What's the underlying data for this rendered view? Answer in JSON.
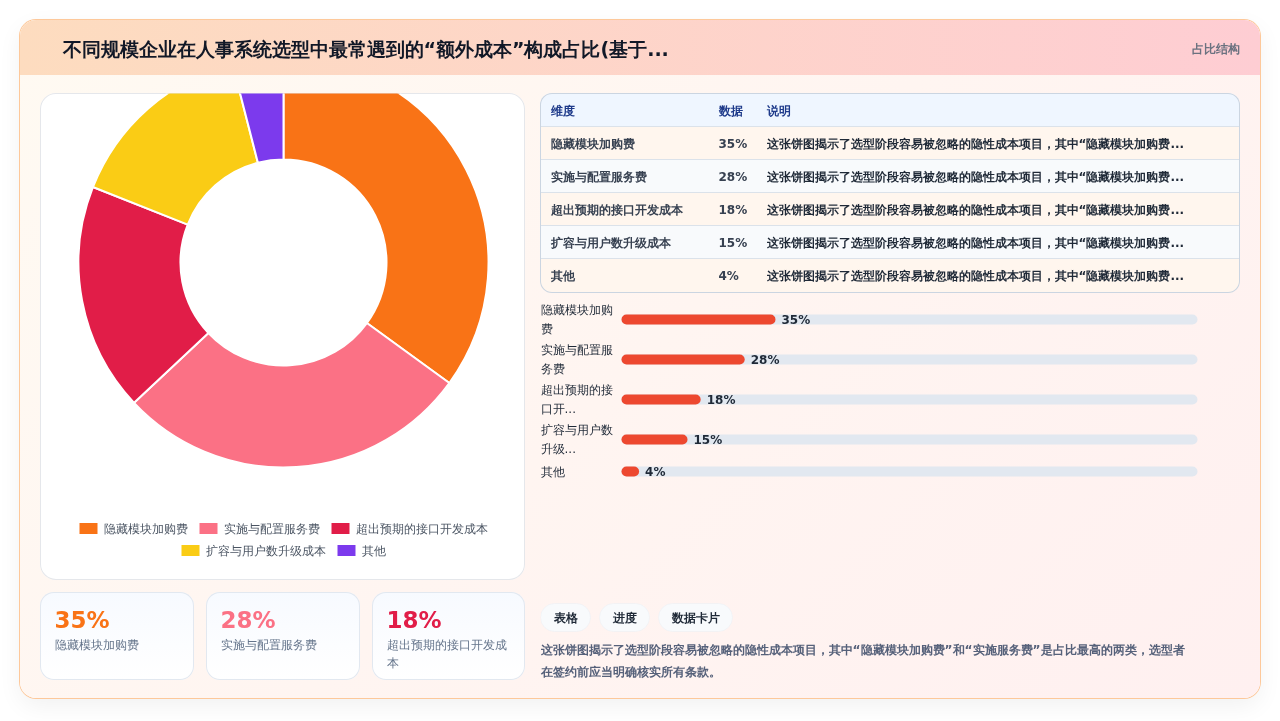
{
  "chart_data": [
    {
      "type": "other",
      "title": "不同规模企业在人事系统选型中最常遇到的“额外成本”构成占比(基于...",
      "subtitle": "占比结构"
    },
    {
      "type": "donut",
      "categories": [
        "隐藏模块加购费",
        "实施与配置服务费",
        "超出预期的接口开发成本",
        "扩容与用户数升级成本",
        "其他"
      ],
      "values": [
        35,
        28,
        18,
        15,
        4
      ],
      "colors": [
        "#f97316",
        "#fb7185",
        "#e11d48",
        "#facc15",
        "#7c3aed"
      ],
      "legend": "bottom"
    },
    {
      "type": "other",
      "categories": [
        "隐藏模块加购费",
        "实施与配置服务费",
        "超出预期的接口开发成本",
        "扩容与用户数升级成本",
        "其他"
      ],
      "values": [
        35,
        28,
        18,
        15,
        4
      ],
      "value_labels": [
        "35%",
        "28%",
        "18%",
        "15%",
        "4%"
      ],
      "annotations": [
        "维度",
        "数据",
        "说明",
        "这张饼图揭示了选型阶段容易被忽略的隐性成本项目，其中“隐藏模块加购费...",
        "这张饼图揭示了选型阶段容易被忽略的隐性成本项目，其中“隐藏模块加购费...",
        "这张饼图揭示了选型阶段容易被忽略的隐性成本项目，其中“隐藏模块加购费...",
        "这张饼图揭示了选型阶段容易被忽略的隐性成本项目，其中“隐藏模块加购费...",
        "这张饼图揭示了选型阶段容易被忽略的隐性成本项目，其中“隐藏模块加购费..."
      ]
    },
    {
      "type": "bar",
      "orientation": "horizontal",
      "categories": [
        "隐藏模块加购费",
        "实施与配置服务费",
        "超出预期的接口开...",
        "扩容与用户数升级...",
        "其他"
      ],
      "values": [
        35,
        28,
        18,
        15,
        4
      ],
      "value_labels": [
        "35%",
        "28%",
        "18%",
        "15%",
        "4%"
      ],
      "color": "#ed482f"
    },
    {
      "type": "other",
      "annotations": [
        "35%",
        "隐藏模块加购费",
        "28%",
        "实施与配置服务费",
        "18%",
        "超出预期的接口开发成本"
      ],
      "colors": [
        "#f97316",
        "#fb7185",
        "#e11d48"
      ]
    },
    {
      "type": "other",
      "categories": [
        "表格",
        "进度",
        "数据卡片"
      ],
      "annotations": [
        "这张饼图揭示了选型阶段容易被忽略的隐性成本项目，其中“隐藏模块加购费”和“实施服务费”是占比最高的两类，选型者在签约前应当明确核实所有条款。"
      ]
    }
  ]
}
